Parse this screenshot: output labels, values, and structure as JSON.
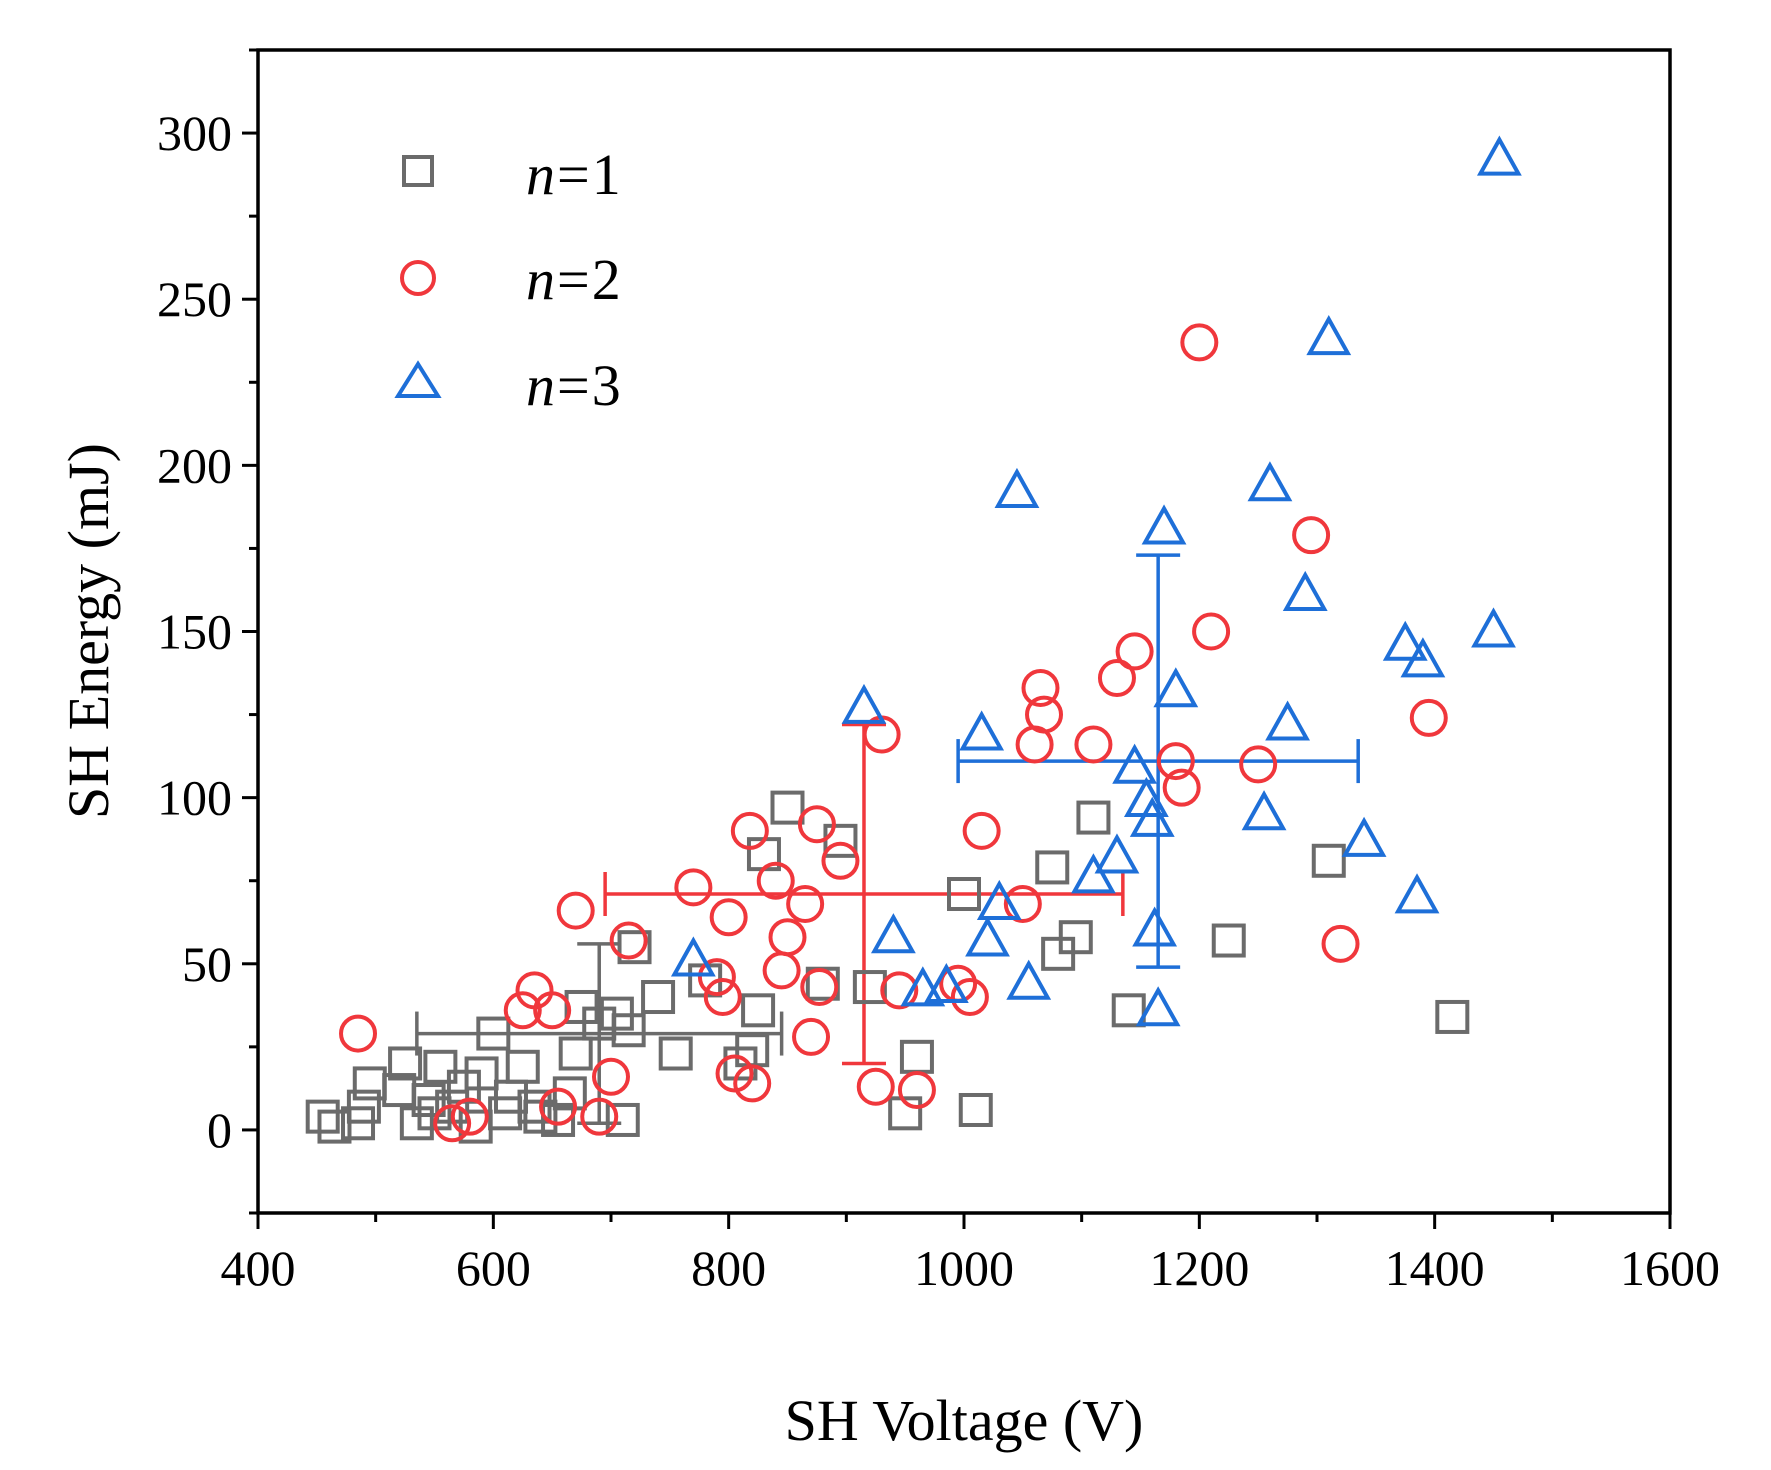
{
  "chart_data": {
    "type": "scatter",
    "title": "",
    "xlabel": "SH Voltage (V)",
    "ylabel": "SH Energy (mJ)",
    "xlim": [
      400,
      1600
    ],
    "ylim": [
      -25,
      325
    ],
    "xticks": [
      400,
      600,
      800,
      1000,
      1200,
      1400,
      1600
    ],
    "xtick_labels": [
      "400",
      "600",
      "800",
      "1000",
      "1200",
      "1400",
      "1600"
    ],
    "yticks": [
      0,
      50,
      100,
      150,
      200,
      250,
      300
    ],
    "ytick_labels": [
      "0",
      "50",
      "100",
      "150",
      "200",
      "250",
      "300"
    ],
    "grid": false,
    "legend_position": "top-left",
    "series": [
      {
        "name": "n=1",
        "legend_var": "n",
        "legend_eq": "=",
        "legend_num": "1",
        "marker": "square",
        "color": "#6b6b6b",
        "points": [
          [
            455,
            4
          ],
          [
            465,
            1
          ],
          [
            485,
            2
          ],
          [
            490,
            7
          ],
          [
            495,
            14
          ],
          [
            520,
            12
          ],
          [
            525,
            20
          ],
          [
            535,
            2
          ],
          [
            545,
            9
          ],
          [
            550,
            5
          ],
          [
            555,
            19
          ],
          [
            565,
            7
          ],
          [
            575,
            13
          ],
          [
            585,
            1
          ],
          [
            590,
            17
          ],
          [
            600,
            29
          ],
          [
            610,
            5
          ],
          [
            615,
            10
          ],
          [
            625,
            19
          ],
          [
            635,
            7
          ],
          [
            640,
            4
          ],
          [
            655,
            3
          ],
          [
            665,
            11
          ],
          [
            670,
            23
          ],
          [
            675,
            37
          ],
          [
            690,
            32
          ],
          [
            705,
            35
          ],
          [
            710,
            3
          ],
          [
            715,
            30
          ],
          [
            720,
            55
          ],
          [
            740,
            40
          ],
          [
            755,
            23
          ],
          [
            780,
            45
          ],
          [
            810,
            20
          ],
          [
            820,
            24
          ],
          [
            825,
            36
          ],
          [
            830,
            83
          ],
          [
            850,
            97
          ],
          [
            880,
            44
          ],
          [
            895,
            87
          ],
          [
            920,
            43
          ],
          [
            950,
            5
          ],
          [
            960,
            22
          ],
          [
            1000,
            71
          ],
          [
            1010,
            6
          ],
          [
            1075,
            79
          ],
          [
            1080,
            53
          ],
          [
            1095,
            58
          ],
          [
            1110,
            94
          ],
          [
            1140,
            36
          ],
          [
            1225,
            57
          ],
          [
            1310,
            81
          ],
          [
            1415,
            34
          ]
        ]
      },
      {
        "name": "n=2",
        "legend_var": "n",
        "legend_eq": "=",
        "legend_num": "2",
        "marker": "circle",
        "color": "#f0373c",
        "points": [
          [
            485,
            29
          ],
          [
            565,
            2
          ],
          [
            580,
            4
          ],
          [
            625,
            36
          ],
          [
            635,
            42
          ],
          [
            650,
            36
          ],
          [
            655,
            7
          ],
          [
            670,
            66
          ],
          [
            690,
            4
          ],
          [
            700,
            16
          ],
          [
            715,
            57
          ],
          [
            770,
            73
          ],
          [
            790,
            46
          ],
          [
            795,
            40
          ],
          [
            800,
            64
          ],
          [
            805,
            17
          ],
          [
            818,
            90
          ],
          [
            820,
            14
          ],
          [
            840,
            75
          ],
          [
            845,
            48
          ],
          [
            850,
            58
          ],
          [
            865,
            68
          ],
          [
            870,
            28
          ],
          [
            875,
            92
          ],
          [
            877,
            43
          ],
          [
            895,
            81
          ],
          [
            925,
            13
          ],
          [
            930,
            119
          ],
          [
            945,
            42
          ],
          [
            960,
            12
          ],
          [
            995,
            44
          ],
          [
            1005,
            40
          ],
          [
            1015,
            90
          ],
          [
            1050,
            68
          ],
          [
            1060,
            116
          ],
          [
            1065,
            133
          ],
          [
            1068,
            125
          ],
          [
            1110,
            116
          ],
          [
            1130,
            136
          ],
          [
            1145,
            144
          ],
          [
            1180,
            111
          ],
          [
            1185,
            103
          ],
          [
            1200,
            237
          ],
          [
            1210,
            150
          ],
          [
            1250,
            110
          ],
          [
            1295,
            179
          ],
          [
            1320,
            56
          ],
          [
            1395,
            124
          ]
        ]
      },
      {
        "name": "n=3",
        "legend_var": "n",
        "legend_eq": "=",
        "legend_num": "3",
        "marker": "triangle",
        "color": "#1e6fd8",
        "points": [
          [
            770,
            51
          ],
          [
            915,
            127
          ],
          [
            940,
            58
          ],
          [
            965,
            42
          ],
          [
            985,
            43
          ],
          [
            1015,
            119
          ],
          [
            1020,
            57
          ],
          [
            1030,
            68
          ],
          [
            1045,
            192
          ],
          [
            1055,
            44
          ],
          [
            1110,
            76
          ],
          [
            1130,
            82
          ],
          [
            1145,
            109
          ],
          [
            1155,
            99
          ],
          [
            1160,
            93
          ],
          [
            1162,
            60
          ],
          [
            1165,
            36
          ],
          [
            1170,
            181
          ],
          [
            1180,
            132
          ],
          [
            1255,
            95
          ],
          [
            1260,
            194
          ],
          [
            1275,
            122
          ],
          [
            1290,
            161
          ],
          [
            1310,
            238
          ],
          [
            1340,
            87
          ],
          [
            1375,
            146
          ],
          [
            1385,
            70
          ],
          [
            1390,
            141
          ],
          [
            1450,
            150
          ],
          [
            1455,
            292
          ]
        ]
      }
    ],
    "error_bars": [
      {
        "series": "n=1",
        "x": 690,
        "y": 29,
        "x_err": 155,
        "y_err": 27
      },
      {
        "series": "n=2",
        "x": 915,
        "y": 71,
        "x_err": 220,
        "y_err": 51
      },
      {
        "series": "n=3",
        "x": 1165,
        "y": 111,
        "x_err": 170,
        "y_err": 62
      }
    ]
  }
}
